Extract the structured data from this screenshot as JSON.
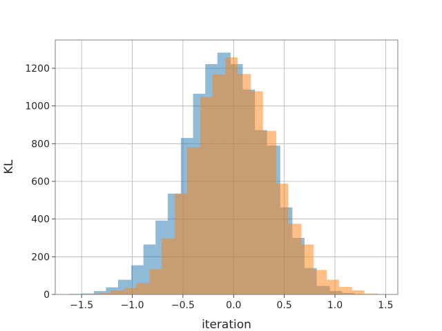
{
  "chart_data": {
    "type": "bar",
    "title": "",
    "xlabel": "iteration",
    "ylabel": "KL",
    "xlim": [
      -1.76,
      1.62
    ],
    "ylim": [
      0,
      1350
    ],
    "grid": true,
    "xticks": [
      -1.5,
      -1.0,
      -0.5,
      0.0,
      0.5,
      1.0,
      1.5
    ],
    "xtick_labels": [
      "−1.5",
      "−1.0",
      "−0.5",
      "0.0",
      "0.5",
      "1.0",
      "1.5"
    ],
    "yticks": [
      0,
      200,
      400,
      600,
      800,
      1000,
      1200
    ],
    "ytick_labels": [
      "0",
      "200",
      "400",
      "600",
      "800",
      "1000",
      "1200"
    ],
    "series": [
      {
        "color": "#1f77b4",
        "opacity": 0.5,
        "bins": [
          {
            "x0": -1.62,
            "x1": -1.5,
            "count": 3
          },
          {
            "x0": -1.5,
            "x1": -1.38,
            "count": 5
          },
          {
            "x0": -1.38,
            "x1": -1.26,
            "count": 18
          },
          {
            "x0": -1.26,
            "x1": -1.14,
            "count": 38
          },
          {
            "x0": -1.14,
            "x1": -1.01,
            "count": 78
          },
          {
            "x0": -1.01,
            "x1": -0.89,
            "count": 155
          },
          {
            "x0": -0.89,
            "x1": -0.77,
            "count": 265
          },
          {
            "x0": -0.77,
            "x1": -0.65,
            "count": 392
          },
          {
            "x0": -0.65,
            "x1": -0.52,
            "count": 535
          },
          {
            "x0": -0.52,
            "x1": -0.4,
            "count": 830
          },
          {
            "x0": -0.4,
            "x1": -0.28,
            "count": 1065
          },
          {
            "x0": -0.28,
            "x1": -0.16,
            "count": 1222
          },
          {
            "x0": -0.16,
            "x1": -0.03,
            "count": 1283
          },
          {
            "x0": -0.03,
            "x1": 0.09,
            "count": 1222
          },
          {
            "x0": 0.09,
            "x1": 0.21,
            "count": 1087
          },
          {
            "x0": 0.21,
            "x1": 0.33,
            "count": 872
          },
          {
            "x0": 0.33,
            "x1": 0.46,
            "count": 790
          },
          {
            "x0": 0.46,
            "x1": 0.58,
            "count": 462
          },
          {
            "x0": 0.58,
            "x1": 0.7,
            "count": 300
          },
          {
            "x0": 0.7,
            "x1": 0.82,
            "count": 140
          },
          {
            "x0": 0.82,
            "x1": 0.95,
            "count": 45
          },
          {
            "x0": 0.95,
            "x1": 1.07,
            "count": 18
          },
          {
            "x0": 1.07,
            "x1": 1.19,
            "count": 8
          }
        ]
      },
      {
        "color": "#ff7f0e",
        "opacity": 0.5,
        "bins": [
          {
            "x0": -1.46,
            "x1": -1.33,
            "count": 3
          },
          {
            "x0": -1.33,
            "x1": -1.21,
            "count": 8
          },
          {
            "x0": -1.21,
            "x1": -1.08,
            "count": 22
          },
          {
            "x0": -1.08,
            "x1": -0.96,
            "count": 35
          },
          {
            "x0": -0.96,
            "x1": -0.83,
            "count": 60
          },
          {
            "x0": -0.83,
            "x1": -0.71,
            "count": 135
          },
          {
            "x0": -0.71,
            "x1": -0.58,
            "count": 298
          },
          {
            "x0": -0.58,
            "x1": -0.46,
            "count": 535
          },
          {
            "x0": -0.46,
            "x1": -0.33,
            "count": 780
          },
          {
            "x0": -0.33,
            "x1": -0.21,
            "count": 1048
          },
          {
            "x0": -0.21,
            "x1": -0.08,
            "count": 1168
          },
          {
            "x0": -0.08,
            "x1": 0.04,
            "count": 1258
          },
          {
            "x0": 0.04,
            "x1": 0.17,
            "count": 1170
          },
          {
            "x0": 0.17,
            "x1": 0.29,
            "count": 1078
          },
          {
            "x0": 0.29,
            "x1": 0.42,
            "count": 868
          },
          {
            "x0": 0.42,
            "x1": 0.54,
            "count": 588
          },
          {
            "x0": 0.54,
            "x1": 0.67,
            "count": 375
          },
          {
            "x0": 0.67,
            "x1": 0.79,
            "count": 265
          },
          {
            "x0": 0.79,
            "x1": 0.92,
            "count": 130
          },
          {
            "x0": 0.92,
            "x1": 1.04,
            "count": 78
          },
          {
            "x0": 1.04,
            "x1": 1.17,
            "count": 40
          },
          {
            "x0": 1.17,
            "x1": 1.29,
            "count": 22
          },
          {
            "x0": 1.29,
            "x1": 1.42,
            "count": 5
          },
          {
            "x0": 1.42,
            "x1": 1.54,
            "count": 2
          }
        ]
      }
    ]
  }
}
